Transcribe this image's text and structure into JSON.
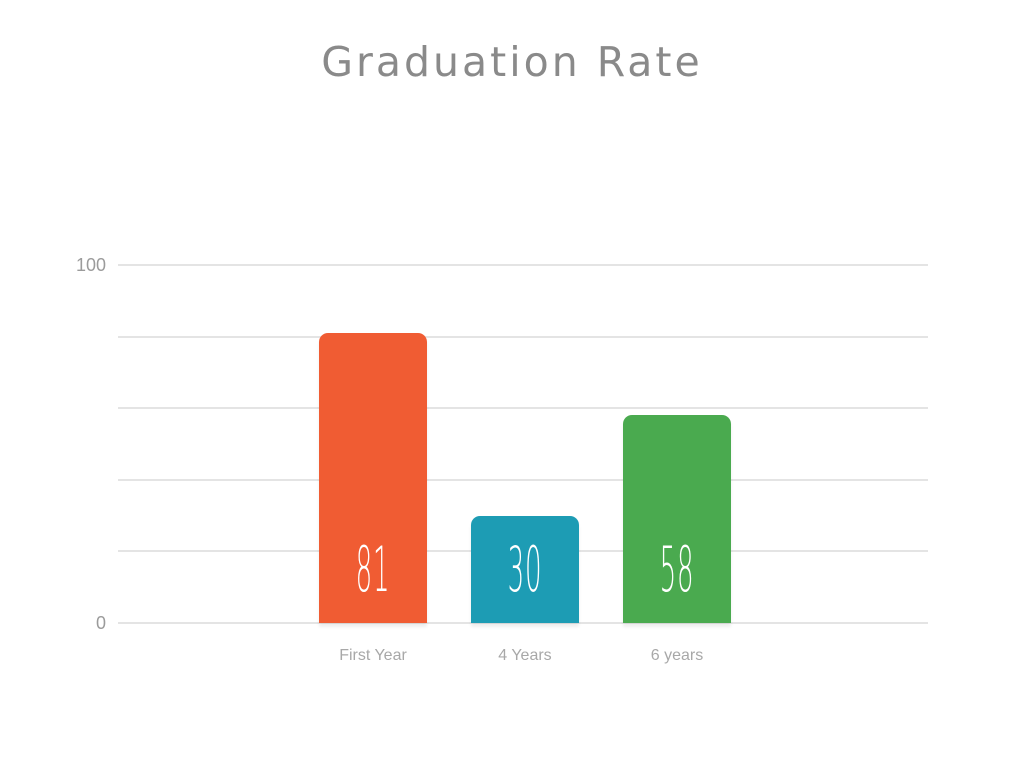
{
  "title": "Graduation Rate",
  "chart_data": {
    "type": "bar",
    "title": "Graduation Rate",
    "categories": [
      "First Year",
      "4 Years",
      "6 years"
    ],
    "values": [
      81,
      30,
      58
    ],
    "series": [
      {
        "name": "Graduation Rate",
        "values": [
          81,
          30,
          58
        ]
      }
    ],
    "bar_colors": [
      "#F05C33",
      "#1D9CB4",
      "#4AAA4F"
    ],
    "value_labels": [
      "81",
      "30",
      "58"
    ],
    "value_label_color": "#FFFFFF",
    "xlabel": "",
    "ylabel": "",
    "ylim": [
      0,
      100
    ],
    "gridlines": [
      0,
      20,
      40,
      60,
      80,
      100
    ],
    "grid_on": true,
    "grid_color": "#E4E4E4",
    "ytick_labels": [
      {
        "value": 100,
        "label": "100"
      },
      {
        "value": 0,
        "label": "0"
      }
    ],
    "legend_position": "none"
  },
  "styles": {
    "background_color": "#FFFFFF",
    "title_color": "#8A8A8A",
    "ytick_color": "#9B9B9B",
    "category_label_color": "#A8A8A8"
  }
}
